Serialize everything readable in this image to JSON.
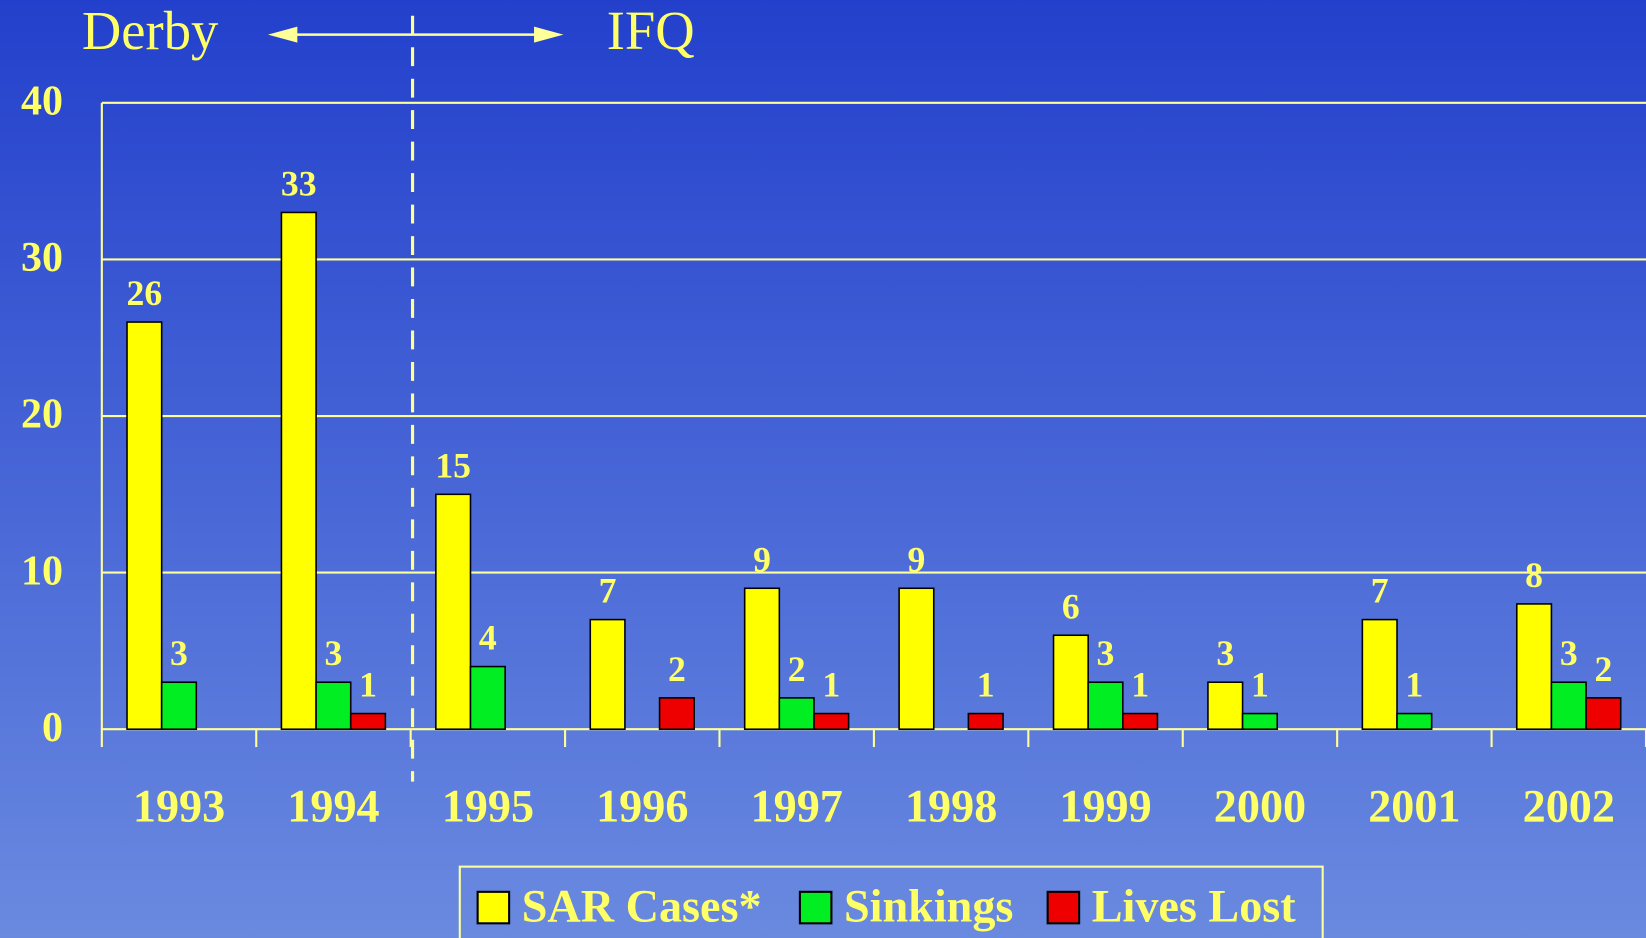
{
  "chart_data": {
    "type": "bar",
    "annotations": [
      "Derby",
      "IFQ"
    ],
    "categories": [
      "1993",
      "1994",
      "1995",
      "1996",
      "1997",
      "1998",
      "1999",
      "2000",
      "2001",
      "2002"
    ],
    "series": [
      {
        "name": "SAR Cases*",
        "color": "#ffff00",
        "values": [
          26,
          33,
          15,
          7,
          9,
          9,
          6,
          3,
          7,
          8
        ]
      },
      {
        "name": "Sinkings",
        "color": "#00ee22",
        "values": [
          3,
          3,
          4,
          0,
          2,
          0,
          3,
          1,
          1,
          3
        ]
      },
      {
        "name": "Lives Lost",
        "color": "#ee0000",
        "values": [
          0,
          1,
          0,
          2,
          1,
          1,
          1,
          0,
          0,
          2
        ]
      }
    ],
    "ylim": [
      0,
      40
    ],
    "yticks": [
      0,
      10,
      20,
      30,
      40
    ],
    "grid": true,
    "legend": "bottom"
  }
}
